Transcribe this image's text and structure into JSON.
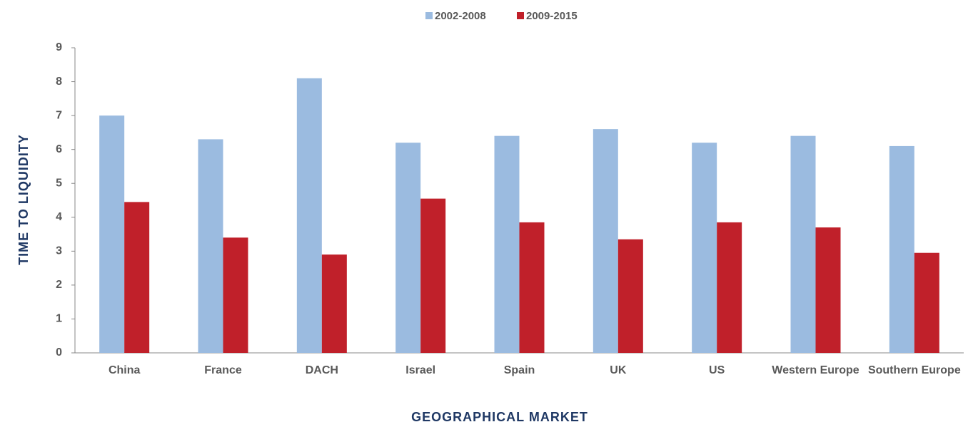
{
  "chart_data": {
    "type": "bar",
    "x_label": "GEOGRAPHICAL MARKET",
    "y_label": "TIME TO LIQUIDITY",
    "categories": [
      "China",
      "France",
      "DACH",
      "Israel",
      "Spain",
      "UK",
      "US",
      "Western Europe",
      "Southern Europe"
    ],
    "series": [
      {
        "name": "2002-2008",
        "color": "#9bbbe0",
        "values": [
          7.0,
          6.3,
          8.1,
          6.2,
          6.4,
          6.6,
          6.2,
          6.4,
          6.1
        ]
      },
      {
        "name": "2009-2015",
        "color": "#c0202a",
        "values": [
          4.45,
          3.4,
          2.9,
          4.55,
          3.85,
          3.35,
          3.85,
          3.7,
          2.95
        ]
      }
    ],
    "ylim": [
      0,
      9
    ],
    "yticks": [
      0,
      1,
      2,
      3,
      4,
      5,
      6,
      7,
      8,
      9
    ],
    "legend": "top",
    "grid": false
  }
}
